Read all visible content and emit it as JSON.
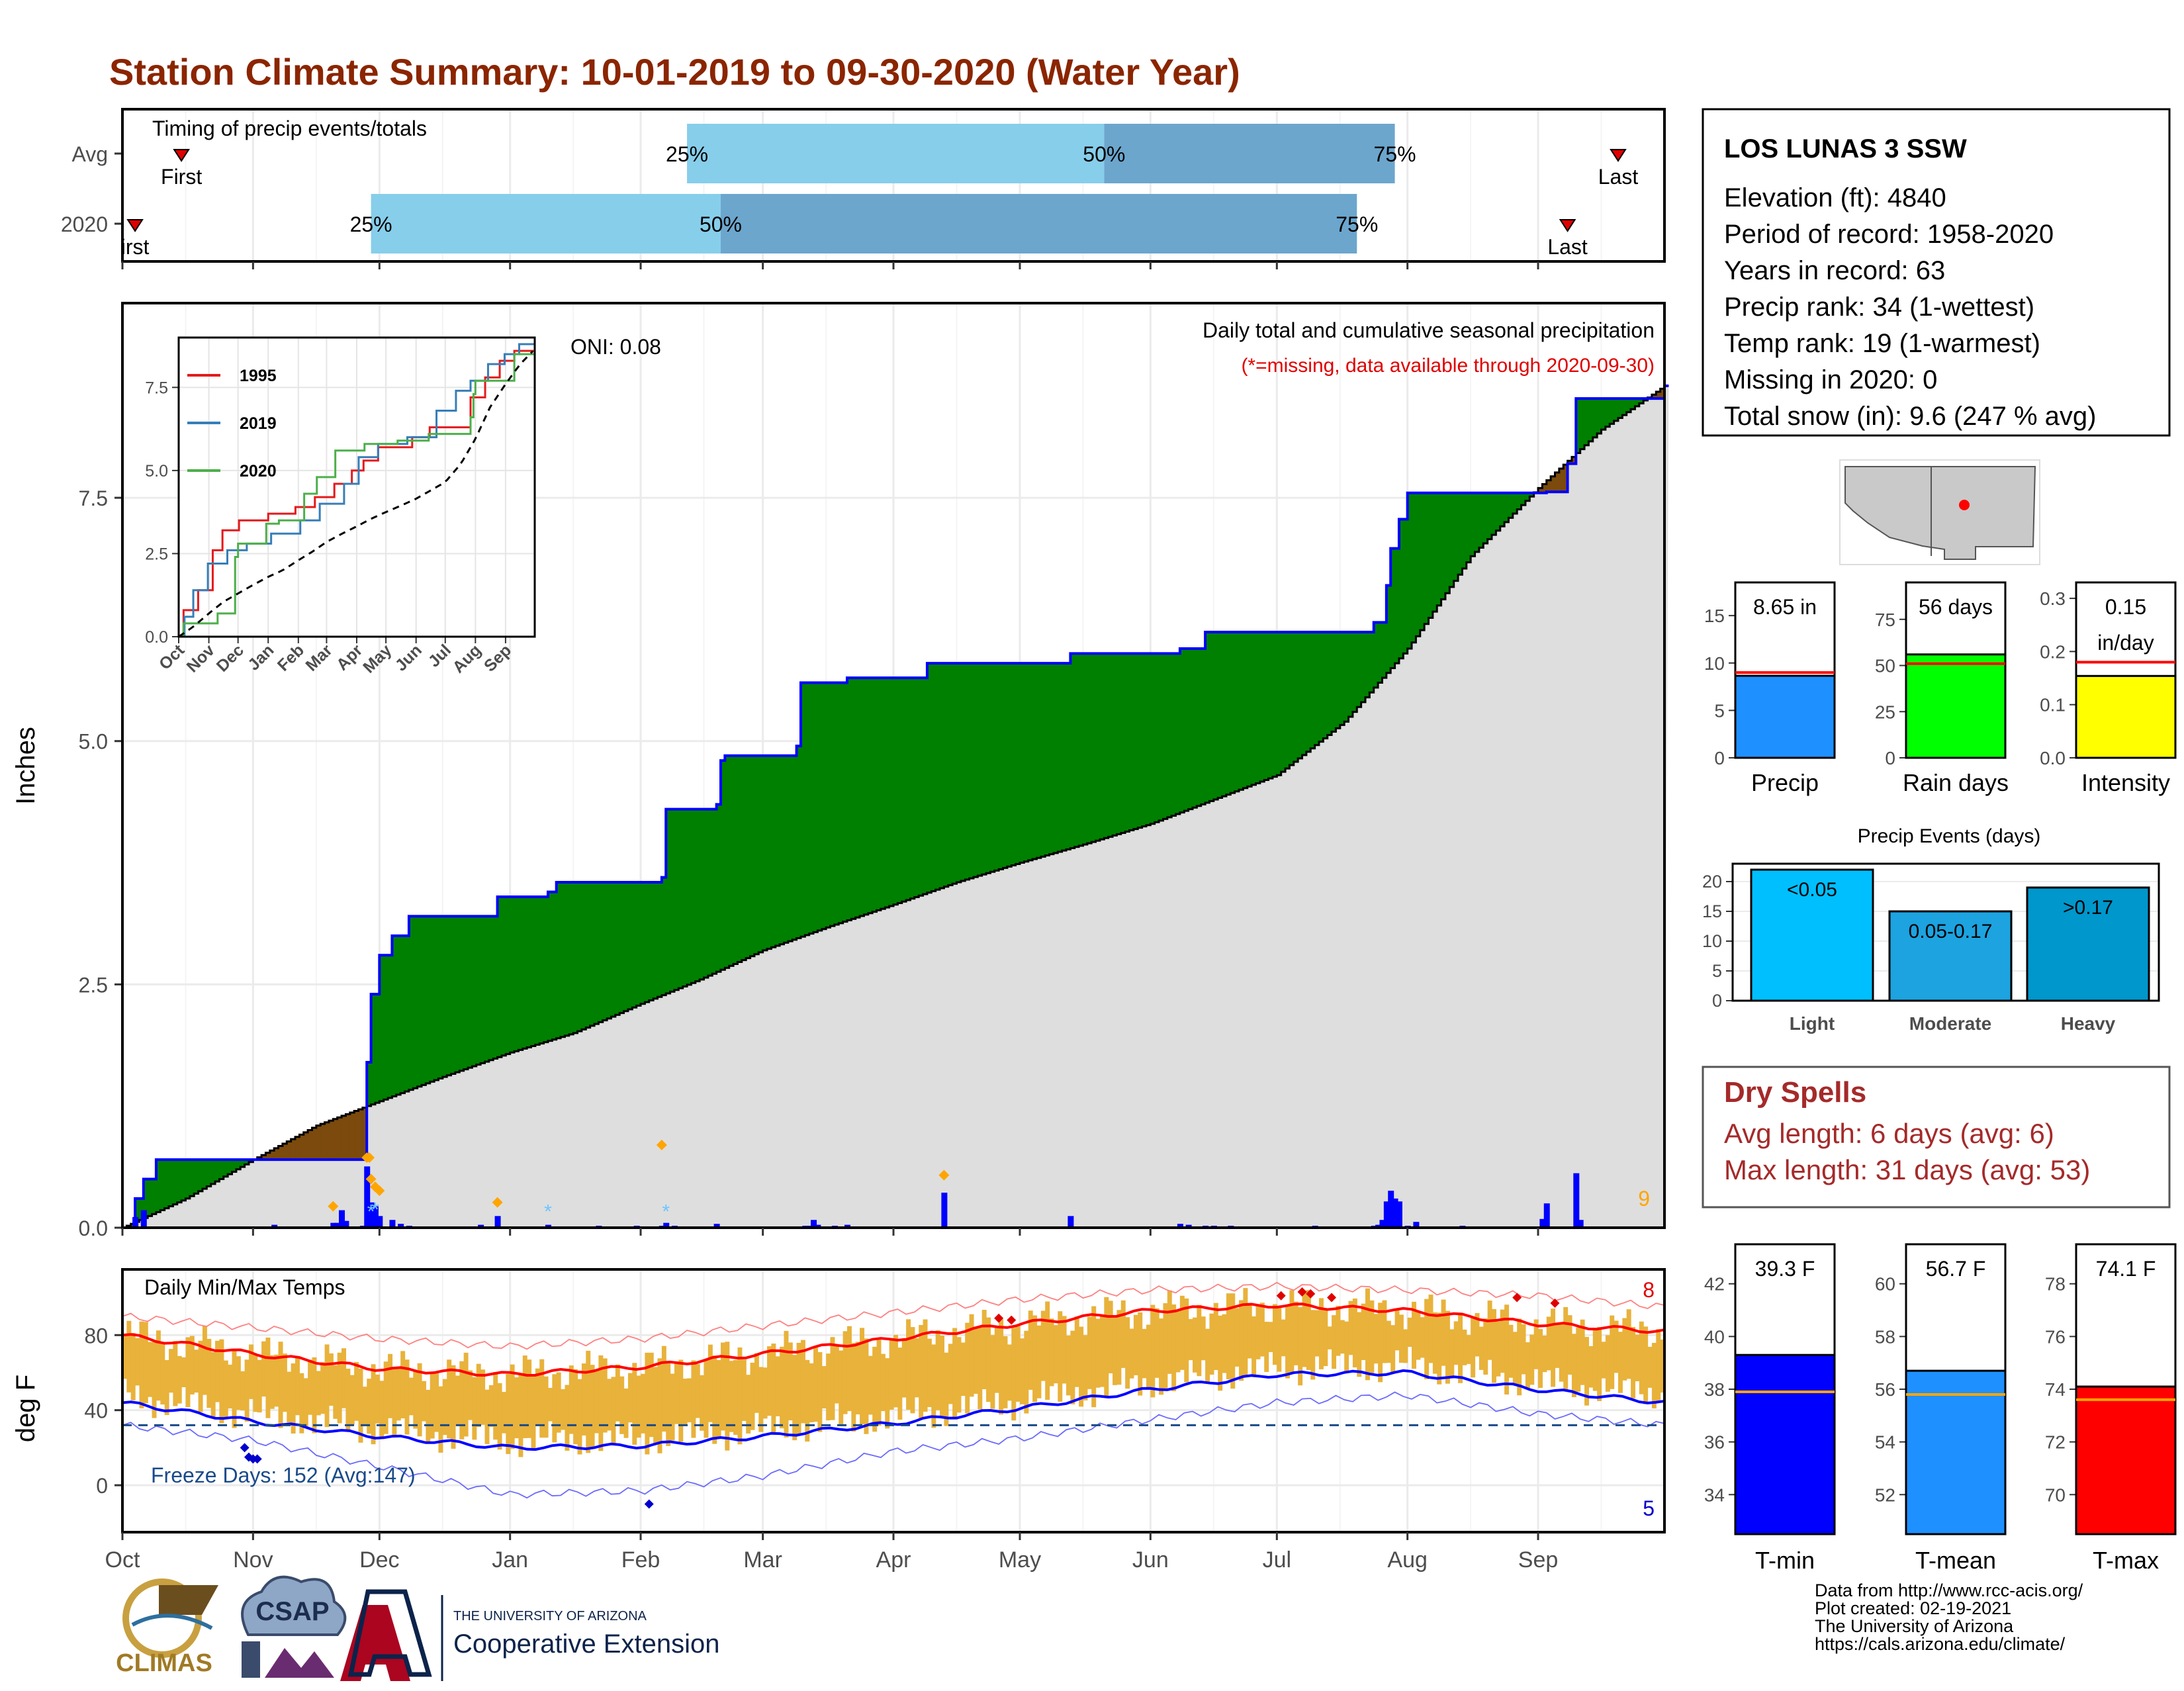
{
  "title": "Station Climate Summary: 10-01-2019 to 09-30-2020 (Water Year)",
  "colors": {
    "title": "#8B2500",
    "green_fill": "#008000",
    "brown_fill": "#7B4A0C",
    "grey_fill": "#DEDEDE",
    "precip_line": "#0000FF",
    "bar_light": "#87CEEB",
    "bar_dark": "#6CA6CD",
    "range_fill": "#E8B23B",
    "tmax": "#FF0000",
    "tmin": "#0000FF",
    "orange": "#FFA500",
    "dry": "#A52A2A"
  },
  "timing_panel": {
    "label": "Timing of precip events/totals",
    "rows": [
      {
        "name": "Avg",
        "first_day": 14,
        "q25": 134,
        "q50": 233,
        "q75": 302,
        "last_day": 355,
        "q25_label": "25%",
        "q50_label": "50%",
        "q75_label": "75%",
        "first_label": "First",
        "last_label": "Last"
      },
      {
        "name": "2020",
        "first_day": 3,
        "q25": 59,
        "q50": 142,
        "q75": 293,
        "last_day": 343,
        "q25_label": "25%",
        "q50_label": "50%",
        "q75_label": "75%",
        "first_label": "irst",
        "last_label": "Last"
      }
    ]
  },
  "precip_panel": {
    "annotation_top": "Daily total and cumulative seasonal precipitation",
    "annotation_missing": "(*=missing, data available through 2020-09-30)",
    "oni_label": "ONI: 0.08",
    "right_count": "9",
    "ylabel": "Inches",
    "yticks": [
      0.0,
      2.5,
      5.0,
      7.5
    ],
    "ytick_labels": [
      "0.0",
      "2.5",
      "5.0",
      "7.5"
    ],
    "ylim": [
      0,
      9.5
    ],
    "inset": {
      "legend": [
        "1995",
        "2019",
        "2020"
      ],
      "legend_colors": [
        "#E41A1C",
        "#377EB8",
        "#4DAF4A"
      ],
      "yticks": [
        0.0,
        2.5,
        5.0,
        7.5
      ],
      "ytick_labels": [
        "0.0",
        "2.5",
        "5.0",
        "7.5"
      ],
      "month_labels": [
        "Oct",
        "Nov",
        "Dec",
        "Jan",
        "Feb",
        "Mar",
        "Apr",
        "May",
        "Jun",
        "Jul",
        "Aug",
        "Sep"
      ]
    }
  },
  "temp_panel": {
    "label": "Daily Min/Max Temps",
    "freeze_label": "Freeze Days: 152 (Avg:147)",
    "ylabel": "deg F",
    "yticks": [
      0,
      40,
      80
    ],
    "ytick_labels": [
      "0",
      "40",
      "80"
    ],
    "ylim": [
      -25,
      115
    ],
    "count_high": "8",
    "count_low": "5"
  },
  "x_axis": {
    "months": [
      "Oct",
      "Nov",
      "Dec",
      "Jan",
      "Feb",
      "Mar",
      "Apr",
      "May",
      "Jun",
      "Jul",
      "Aug",
      "Sep"
    ],
    "month_start_days": [
      0,
      31,
      61,
      92,
      123,
      152,
      183,
      213,
      244,
      274,
      305,
      336
    ],
    "total_days": 366
  },
  "station_info": {
    "name": "LOS LUNAS 3 SSW",
    "lines": [
      "Elevation (ft): 4840",
      "Period of record: 1958-2020",
      "Years in record: 63",
      "Precip rank: 34 (1-wettest)",
      "Temp rank: 19 (1-warmest)",
      "Missing in 2020: 0",
      "Total snow (in): 9.6 (247 % avg)"
    ]
  },
  "summary_bars": [
    {
      "label": "Precip",
      "value_label": "8.65 in",
      "value": 8.65,
      "avg": 9.0,
      "ymax": 18.5,
      "yticks": [
        0,
        5,
        10,
        15
      ],
      "ytick_labels": [
        "0",
        "5",
        "10",
        "15"
      ],
      "color": "#1E90FF"
    },
    {
      "label": "Rain days",
      "value_label": "56 days",
      "value": 56,
      "avg": 51,
      "ymax": 95,
      "yticks": [
        0,
        25,
        50,
        75
      ],
      "ytick_labels": [
        "0",
        "25",
        "50",
        "75"
      ],
      "color": "#00FF00"
    },
    {
      "label": "Intensity",
      "value_label": "0.15\nin/day",
      "value": 0.154,
      "avg": 0.18,
      "ymax": 0.33,
      "yticks": [
        0.0,
        0.1,
        0.2,
        0.3
      ],
      "ytick_labels": [
        "0.0",
        "0.1",
        "0.2",
        "0.3"
      ],
      "color": "#FFFF00"
    }
  ],
  "precip_events": {
    "title": "Precip Events (days)",
    "categories": [
      "Light",
      "Moderate",
      "Heavy"
    ],
    "bar_labels": [
      "<0.05",
      "0.05-0.17",
      ">0.17"
    ],
    "values": [
      22,
      15,
      19
    ],
    "yticks": [
      0,
      5,
      10,
      15,
      20
    ],
    "ytick_labels": [
      "0",
      "5",
      "10",
      "15",
      "20"
    ],
    "colors": [
      "#00BFFF",
      "#1CA3E0",
      "#0097CC"
    ]
  },
  "dry_spells": {
    "title": "Dry Spells",
    "avg_line": "Avg length: 6 days (avg: 6)",
    "max_line": "Max length: 31 days (avg: 53)"
  },
  "temp_bars": [
    {
      "label": "T-min",
      "value_label": "39.3 F",
      "value": 39.3,
      "avg": 37.9,
      "ymin": 32.5,
      "ymax": 43.5,
      "yticks": [
        34,
        36,
        38,
        40,
        42
      ],
      "ytick_labels": [
        "34",
        "36",
        "38",
        "40",
        "42"
      ],
      "color": "#0000FF"
    },
    {
      "label": "T-mean",
      "value_label": "56.7 F",
      "value": 56.7,
      "avg": 55.8,
      "ymin": 50.5,
      "ymax": 61.5,
      "yticks": [
        52,
        54,
        56,
        58,
        60
      ],
      "ytick_labels": [
        "52",
        "54",
        "56",
        "58",
        "60"
      ],
      "color": "#1E90FF"
    },
    {
      "label": "T-max",
      "value_label": "74.1 F",
      "value": 74.1,
      "avg": 73.6,
      "ymin": 68.5,
      "ymax": 79.5,
      "yticks": [
        70,
        72,
        74,
        76,
        78
      ],
      "ytick_labels": [
        "70",
        "72",
        "74",
        "76",
        "78"
      ],
      "color": "#FF0000"
    }
  ],
  "logos": {
    "climas": "CLIMAS",
    "csap": "CSAP",
    "university": "THE UNIVERSITY OF ARIZONA",
    "extension": "Cooperative Extension"
  },
  "credits": [
    "Data from http://www.rcc-acis.org/",
    "Plot created: 02-19-2021",
    "The University of Arizona",
    "https://cals.arizona.edu/climate/"
  ],
  "chart_data": [
    {
      "type": "area",
      "title": "Daily total and cumulative seasonal precipitation",
      "ylabel": "Inches",
      "ylim": [
        0,
        9.5
      ],
      "series": [
        {
          "name": "2020",
          "x": [
            0,
            3,
            5,
            8,
            50,
            58,
            58.5,
            61,
            64,
            68,
            89,
            101,
            103,
            128,
            129,
            141,
            142,
            143,
            160,
            161,
            172,
            189,
            191,
            225,
            251,
            257,
            283,
            297,
            300,
            301,
            303,
            305,
            338,
            343,
            345,
            357,
            366
          ],
          "y": [
            0,
            0.3,
            0.5,
            0.7,
            0.7,
            1.7,
            2.4,
            2.8,
            3.0,
            3.2,
            3.4,
            3.45,
            3.55,
            3.6,
            4.3,
            4.35,
            4.8,
            4.85,
            4.95,
            5.6,
            5.65,
            5.65,
            5.8,
            5.9,
            5.95,
            6.12,
            6.12,
            6.22,
            6.6,
            6.98,
            7.28,
            7.55,
            7.56,
            7.85,
            8.52,
            8.52,
            8.65
          ]
        },
        {
          "name": "Avg",
          "x": [
            0,
            15,
            31,
            46,
            61,
            76,
            92,
            107,
            123,
            137,
            152,
            168,
            183,
            198,
            213,
            229,
            244,
            259,
            274,
            290,
            305,
            320,
            336,
            351,
            366
          ],
          "y": [
            0,
            0.3,
            0.7,
            1.05,
            1.3,
            1.55,
            1.8,
            2.0,
            2.3,
            2.55,
            2.85,
            3.1,
            3.32,
            3.55,
            3.75,
            3.95,
            4.15,
            4.4,
            4.65,
            5.2,
            5.95,
            6.9,
            7.6,
            8.2,
            8.65
          ]
        }
      ],
      "daily_precip": [
        {
          "day": 3,
          "value": 0.11
        },
        {
          "day": 5,
          "value": 0.18
        },
        {
          "day": 36,
          "value": 0.03
        },
        {
          "day": 50,
          "value": 0.05
        },
        {
          "day": 51,
          "value": 0.05
        },
        {
          "day": 52,
          "value": 0.18
        },
        {
          "day": 53,
          "value": 0.07
        },
        {
          "day": 57,
          "value": 0.02
        },
        {
          "day": 58,
          "value": 0.63
        },
        {
          "day": 59,
          "value": 0.26
        },
        {
          "day": 60,
          "value": 0.22
        },
        {
          "day": 61,
          "value": 0.12
        },
        {
          "day": 64,
          "value": 0.08
        },
        {
          "day": 66,
          "value": 0.04
        },
        {
          "day": 68,
          "value": 0.02
        },
        {
          "day": 85,
          "value": 0.03
        },
        {
          "day": 89,
          "value": 0.12
        },
        {
          "day": 101,
          "value": 0.03
        },
        {
          "day": 103,
          "value": 0.01
        },
        {
          "day": 113,
          "value": 0.02
        },
        {
          "day": 122,
          "value": 0.02
        },
        {
          "day": 128,
          "value": 0.02
        },
        {
          "day": 129,
          "value": 0.05
        },
        {
          "day": 131,
          "value": 0.02
        },
        {
          "day": 141,
          "value": 0.04
        },
        {
          "day": 142,
          "value": 0.01
        },
        {
          "day": 162,
          "value": 0.02
        },
        {
          "day": 163,
          "value": 0.02
        },
        {
          "day": 164,
          "value": 0.08
        },
        {
          "day": 165,
          "value": 0.03
        },
        {
          "day": 166,
          "value": 0.01
        },
        {
          "day": 169,
          "value": 0.02
        },
        {
          "day": 172,
          "value": 0.03
        },
        {
          "day": 195,
          "value": 0.36
        },
        {
          "day": 225,
          "value": 0.12
        },
        {
          "day": 251,
          "value": 0.04
        },
        {
          "day": 253,
          "value": 0.03
        },
        {
          "day": 257,
          "value": 0.02
        },
        {
          "day": 259,
          "value": 0.02
        },
        {
          "day": 263,
          "value": 0.02
        },
        {
          "day": 275,
          "value": 0.01
        },
        {
          "day": 283,
          "value": 0.02
        },
        {
          "day": 297,
          "value": 0.02
        },
        {
          "day": 298,
          "value": 0.03
        },
        {
          "day": 299,
          "value": 0.08
        },
        {
          "day": 300,
          "value": 0.27
        },
        {
          "day": 301,
          "value": 0.38
        },
        {
          "day": 302,
          "value": 0.3
        },
        {
          "day": 303,
          "value": 0.27
        },
        {
          "day": 305,
          "value": 0.02
        },
        {
          "day": 307,
          "value": 0.06
        },
        {
          "day": 318,
          "value": 0.02
        },
        {
          "day": 337,
          "value": 0.09
        },
        {
          "day": 338,
          "value": 0.25
        },
        {
          "day": 345,
          "value": 0.56
        },
        {
          "day": 346,
          "value": 0.08
        }
      ]
    },
    {
      "type": "line",
      "title": "Daily Min/Max Temps",
      "ylabel": "deg F",
      "x": [
        0,
        31,
        61,
        92,
        123,
        152,
        183,
        213,
        244,
        274,
        305,
        336,
        366
      ],
      "series": [
        {
          "name": "Avg max",
          "values": [
            80,
            70,
            62,
            59,
            63,
            70,
            78,
            86,
            93,
            96,
            93,
            86,
            82
          ]
        },
        {
          "name": "Avg min",
          "values": [
            44,
            34,
            26,
            20,
            21,
            26,
            33,
            41,
            51,
            59,
            60,
            51,
            44
          ]
        },
        {
          "name": "Record max",
          "values": [
            90,
            84,
            78,
            74,
            78,
            85,
            92,
            99,
            104,
            106,
            104,
            101,
            95
          ]
        },
        {
          "name": "Record min",
          "values": [
            32,
            24,
            10,
            -5,
            -3,
            5,
            18,
            25,
            35,
            44,
            48,
            38,
            32
          ]
        }
      ]
    },
    {
      "type": "bar",
      "title": "Precip Events (days)",
      "categories": [
        "Light",
        "Moderate",
        "Heavy"
      ],
      "values": [
        22,
        15,
        19
      ]
    }
  ]
}
